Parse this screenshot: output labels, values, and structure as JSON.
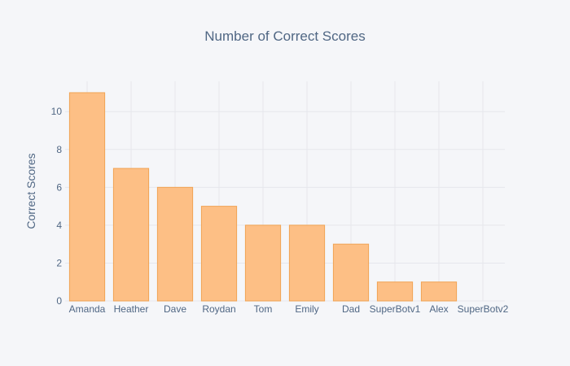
{
  "chart_data": {
    "type": "bar",
    "title": "Number of Correct Scores",
    "xlabel": "",
    "ylabel": "Correct Scores",
    "categories": [
      "Amanda",
      "Heather",
      "Dave",
      "Roydan",
      "Tom",
      "Emily",
      "Dad",
      "SuperBotv1",
      "Alex",
      "SuperBotv2"
    ],
    "values": [
      11,
      7,
      6,
      5,
      4,
      4,
      3,
      1,
      1,
      0
    ],
    "ylim": [
      0,
      11.6
    ],
    "yticks": [
      0,
      2,
      4,
      6,
      8,
      10
    ],
    "grid": true,
    "legend": "none",
    "bar_fill": "#fdbf85",
    "bar_stroke": "#f0a354",
    "background": "#f5f6f9",
    "text_color": "#506784"
  }
}
